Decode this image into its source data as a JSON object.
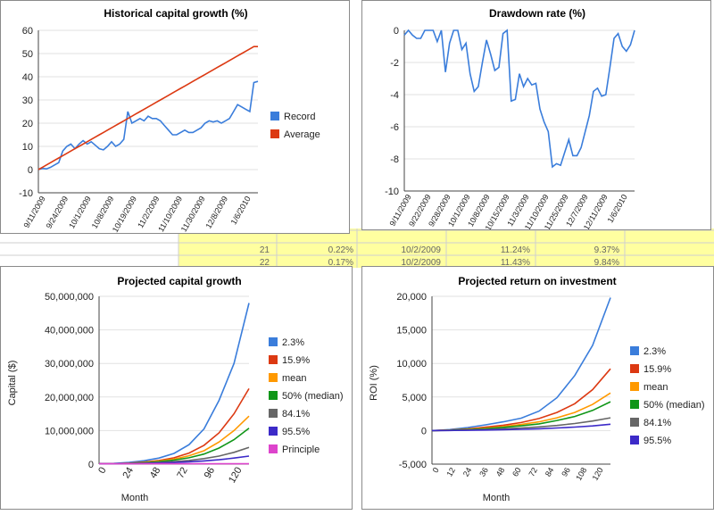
{
  "spreadsheet": {
    "visible_rows": [
      {
        "row": "21",
        "pct": "0.22%",
        "date": "10/2/2009",
        "v1": "11.24%",
        "v2": "9.37%"
      },
      {
        "row": "22",
        "pct": "0.17%",
        "date": "10/2/2009",
        "v1": "11.43%",
        "v2": "9.84%"
      }
    ],
    "colors": {
      "yellow_cell": "#ffffa0",
      "grid": "#cfcfcf"
    }
  },
  "chart_data": [
    {
      "type": "line",
      "title": "Historical capital growth (%)",
      "x_ticks": [
        "9/11/2009",
        "9/24/2009",
        "10/1/2009",
        "10/8/2009",
        "10/19/2009",
        "11/2/2009",
        "11/10/2009",
        "11/30/2009",
        "12/8/2009",
        "1/6/2010"
      ],
      "ylim": [
        -10,
        60
      ],
      "y_ticks": [
        60,
        50,
        40,
        30,
        20,
        10,
        0,
        -10
      ],
      "legend_position": "right",
      "series": [
        {
          "name": "Record",
          "color": "#3a7ddb",
          "values": [
            0,
            0.5,
            0.3,
            1,
            2,
            3,
            8,
            10,
            11,
            9,
            11,
            12.5,
            11,
            12,
            10.5,
            9,
            8.5,
            10,
            12,
            10,
            11,
            13,
            25,
            20,
            21,
            22,
            21,
            23,
            22,
            22,
            21,
            19,
            17,
            15,
            15,
            16,
            17,
            16,
            16,
            17,
            18,
            20,
            21,
            20.5,
            21,
            20,
            21,
            22,
            25,
            28,
            27,
            26,
            25,
            37.5,
            38
          ]
        },
        {
          "name": "Average",
          "color": "#dc3912",
          "values": [
            0,
            1,
            2,
            3,
            4,
            5,
            6,
            7,
            8,
            9,
            10,
            11,
            12,
            13,
            14,
            15,
            16,
            17,
            18,
            19,
            20,
            21,
            22,
            23,
            24,
            25,
            26,
            27,
            28,
            29,
            30,
            31,
            32,
            33,
            34,
            35,
            36,
            37,
            38,
            39,
            40,
            41,
            42,
            43,
            44,
            45,
            46,
            47,
            48,
            49,
            50,
            51,
            52,
            53,
            53
          ]
        }
      ]
    },
    {
      "type": "line",
      "title": "Drawdown rate (%)",
      "x_ticks": [
        "9/11/2009",
        "9/22/2009",
        "9/28/2009",
        "10/1/2009",
        "10/8/2009",
        "10/15/2009",
        "11/3/2009",
        "11/10/2009",
        "11/25/2009",
        "12/7/2009",
        "12/11/2009",
        "1/6/2010"
      ],
      "ylim": [
        -10,
        0
      ],
      "y_ticks": [
        0,
        -2,
        -4,
        -6,
        -8,
        -10
      ],
      "legend_position": "none",
      "series": [
        {
          "name": "",
          "color": "#3a7ddb",
          "values": [
            -0.3,
            0,
            -0.3,
            -0.5,
            -0.5,
            0,
            0,
            0,
            -0.7,
            0,
            -2.6,
            -0.8,
            0,
            0,
            -1.2,
            -0.8,
            -2.7,
            -3.8,
            -3.5,
            -2,
            -0.6,
            -1.5,
            -2.5,
            -2.3,
            -0.2,
            0,
            -4.4,
            -4.3,
            -2.7,
            -3.5,
            -3,
            -3.4,
            -3.3,
            -4.9,
            -5.7,
            -6.3,
            -8.5,
            -8.3,
            -8.4,
            -7.6,
            -6.8,
            -7.8,
            -7.8,
            -7.3,
            -6.3,
            -5.3,
            -3.8,
            -3.6,
            -4.1,
            -4,
            -2.3,
            -0.5,
            -0.2,
            -1,
            -1.3,
            -0.9,
            0
          ]
        }
      ]
    },
    {
      "type": "line",
      "title": "Projected capital growth",
      "xlabel": "Month",
      "ylabel": "Capital ($)",
      "x": [
        0,
        12,
        24,
        36,
        48,
        60,
        72,
        84,
        96,
        108,
        120
      ],
      "x_ticks": [
        "0",
        "24",
        "48",
        "72",
        "96",
        "120"
      ],
      "ylim": [
        0,
        50000000
      ],
      "y_ticks": [
        "50,000,000",
        "40,000,000",
        "30,000,000",
        "20,000,000",
        "10,000,000",
        "0"
      ],
      "y_tick_values": [
        50000000,
        40000000,
        30000000,
        20000000,
        10000000,
        0
      ],
      "legend_position": "right",
      "series": [
        {
          "name": "2.3%",
          "color": "#3a7ddb",
          "values": [
            100000,
            200000,
            500000,
            1000000,
            1800000,
            3200000,
            5800000,
            10500000,
            19000000,
            30000000,
            48000000
          ]
        },
        {
          "name": "15.9%",
          "color": "#dc3912",
          "values": [
            100000,
            150000,
            300000,
            600000,
            1100000,
            1900000,
            3300000,
            5600000,
            9300000,
            15000000,
            22500000
          ]
        },
        {
          "name": "mean",
          "color": "#ff9900",
          "values": [
            100000,
            130000,
            250000,
            500000,
            900000,
            1500000,
            2500000,
            4000000,
            6600000,
            10000000,
            14300000
          ]
        },
        {
          "name": "50% (median)",
          "color": "#109618",
          "values": [
            100000,
            120000,
            220000,
            420000,
            750000,
            1200000,
            1900000,
            3000000,
            4800000,
            7300000,
            10700000
          ]
        },
        {
          "name": "84.1%",
          "color": "#666666",
          "values": [
            100000,
            110000,
            180000,
            300000,
            500000,
            750000,
            1100000,
            1650000,
            2400000,
            3500000,
            5000000
          ]
        },
        {
          "name": "95.5%",
          "color": "#3c2ac8",
          "values": [
            100000,
            100000,
            150000,
            220000,
            330000,
            480000,
            680000,
            950000,
            1300000,
            1800000,
            2400000
          ]
        },
        {
          "name": "Principle",
          "color": "#dd44cc",
          "values": [
            100000,
            100000,
            100000,
            100000,
            100000,
            100000,
            100000,
            100000,
            100000,
            100000,
            100000
          ]
        }
      ]
    },
    {
      "type": "line",
      "title": "Projected return on investment",
      "xlabel": "Month",
      "ylabel": "ROI (%)",
      "x": [
        0,
        12,
        24,
        36,
        48,
        60,
        72,
        84,
        96,
        108,
        120
      ],
      "x_ticks": [
        "0",
        "12",
        "24",
        "36",
        "48",
        "60",
        "72",
        "84",
        "96",
        "108",
        "120"
      ],
      "ylim": [
        -5000,
        20000
      ],
      "y_ticks": [
        "20,000",
        "15,000",
        "10,000",
        "5,000",
        "0",
        "-5,000"
      ],
      "y_tick_values": [
        20000,
        15000,
        10000,
        5000,
        0,
        -5000
      ],
      "legend_position": "right",
      "series": [
        {
          "name": "2.3%",
          "color": "#3a7ddb",
          "values": [
            0,
            150,
            450,
            850,
            1300,
            1850,
            2900,
            4900,
            8200,
            12700,
            19800
          ]
        },
        {
          "name": "15.9%",
          "color": "#dc3912",
          "values": [
            0,
            80,
            250,
            500,
            800,
            1200,
            1800,
            2700,
            4000,
            6100,
            9200
          ]
        },
        {
          "name": "mean",
          "color": "#ff9900",
          "values": [
            0,
            60,
            180,
            350,
            600,
            900,
            1300,
            1900,
            2700,
            3900,
            5600
          ]
        },
        {
          "name": "50% (median)",
          "color": "#109618",
          "values": [
            0,
            50,
            140,
            280,
            480,
            700,
            1000,
            1500,
            2100,
            3000,
            4300
          ]
        },
        {
          "name": "84.1%",
          "color": "#666666",
          "values": [
            0,
            30,
            80,
            160,
            260,
            380,
            540,
            760,
            1050,
            1420,
            1900
          ]
        },
        {
          "name": "95.5%",
          "color": "#3c2ac8",
          "values": [
            0,
            15,
            40,
            80,
            130,
            190,
            270,
            380,
            520,
            690,
            950
          ]
        }
      ]
    }
  ]
}
